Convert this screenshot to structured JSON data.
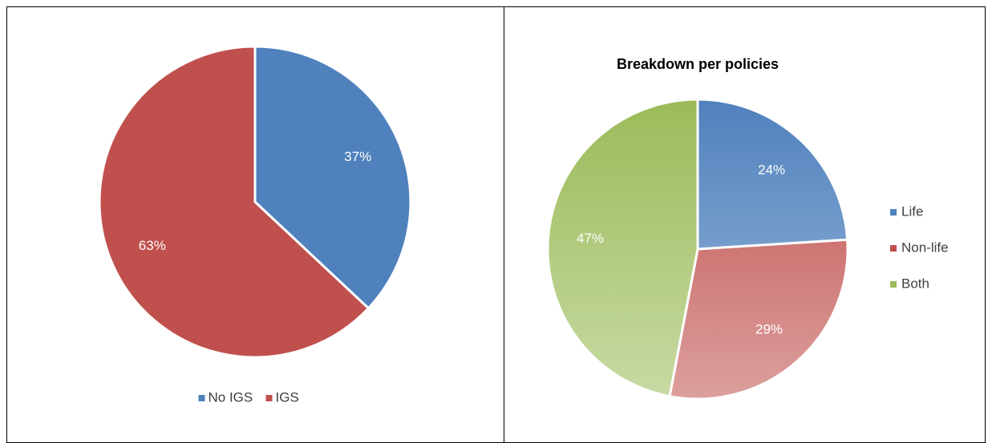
{
  "chart_data": [
    {
      "type": "pie",
      "categories": [
        "No IGS",
        "IGS"
      ],
      "values": [
        37,
        63
      ],
      "value_labels": [
        "37%",
        "63%"
      ],
      "colors": [
        "#4f81bd",
        "#c0504d"
      ],
      "legend": "bottom"
    },
    {
      "type": "pie",
      "title": "Breakdown per policies",
      "categories": [
        "Life",
        "Non-life",
        "Both"
      ],
      "values": [
        24,
        29,
        47
      ],
      "value_labels": [
        "24%",
        "29%",
        "47%"
      ],
      "colors": [
        "#4f81bd",
        "#c0504d",
        "#9bbb59"
      ],
      "legend": "right",
      "gradient": true
    }
  ]
}
